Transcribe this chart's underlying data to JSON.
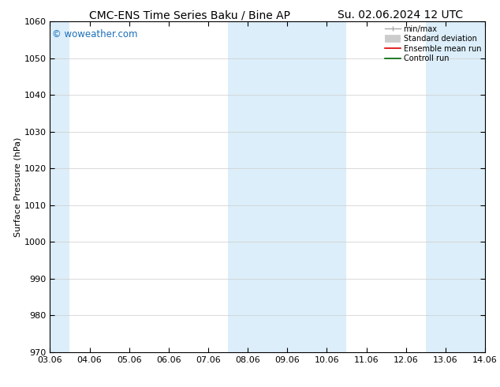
{
  "title_left": "CMC-ENS Time Series Baku / Bine AP",
  "title_right": "Su. 02.06.2024 12 UTC",
  "ylabel": "Surface Pressure (hPa)",
  "ylim": [
    970,
    1060
  ],
  "yticks": [
    970,
    980,
    990,
    1000,
    1010,
    1020,
    1030,
    1040,
    1050,
    1060
  ],
  "xtick_labels": [
    "03.06",
    "04.06",
    "05.06",
    "06.06",
    "07.06",
    "08.06",
    "09.06",
    "10.06",
    "11.06",
    "12.06",
    "13.06",
    "14.06"
  ],
  "n_xticks": 12,
  "shade_color": "#dceef9",
  "watermark": "© woweather.com",
  "watermark_color": "#1a6fba",
  "legend_items": [
    {
      "label": "min/max",
      "color": "#aaaaaa",
      "lw": 1.0
    },
    {
      "label": "Standard deviation",
      "color": "#cccccc",
      "lw": 6
    },
    {
      "label": "Ensemble mean run",
      "color": "#dd0000",
      "lw": 1.2
    },
    {
      "label": "Controll run",
      "color": "#006600",
      "lw": 1.2
    }
  ],
  "bg_color": "#ffffff",
  "title_fontsize": 10,
  "axis_fontsize": 8,
  "tick_fontsize": 8
}
